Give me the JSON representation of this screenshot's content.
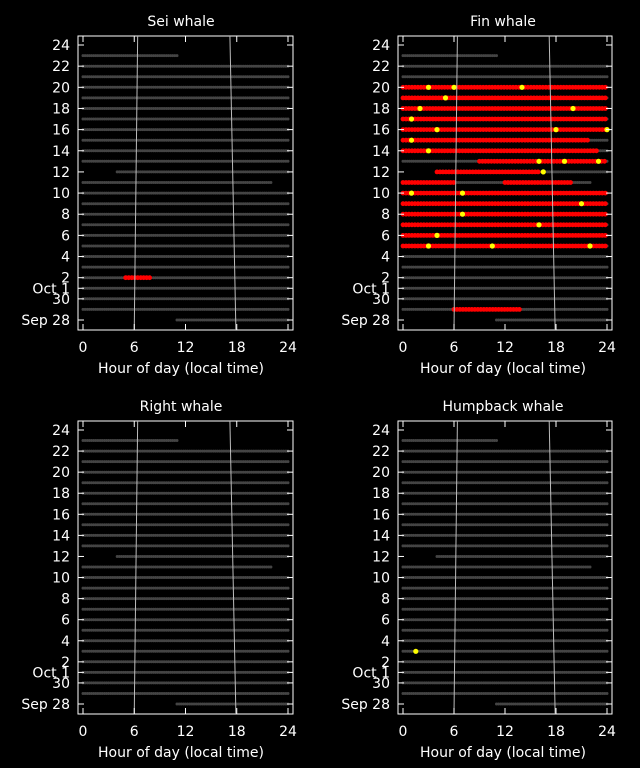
{
  "colors": {
    "background": "#000000",
    "axes": "#ffffff",
    "effort": "#444444",
    "detection": "#ff0000",
    "possible": "#ffff00",
    "sun_lines": "#bbbbbb"
  },
  "chart_data": [
    {
      "type": "scatter",
      "title": "Sei whale",
      "xlabel": "Hour of day (local time)",
      "x_ticks": [
        "0",
        "6",
        "12",
        "18",
        "24"
      ],
      "y_ticks": [
        "24",
        "22",
        "20",
        "18",
        "16",
        "14",
        "12",
        "10",
        "8",
        "6",
        "4",
        "2",
        "Oct 1",
        "30",
        "Sep 28"
      ],
      "xlim": [
        0,
        24
      ],
      "ylim": [
        "Sep 28",
        "Oct 24"
      ],
      "detections": [
        {
          "day": 2,
          "start": 5.0,
          "end": 8.0,
          "class": "detected"
        }
      ]
    },
    {
      "type": "scatter",
      "title": "Fin whale",
      "xlabel": "Hour of day (local time)",
      "x_ticks": [
        "0",
        "6",
        "12",
        "18",
        "24"
      ],
      "y_ticks": [
        "24",
        "22",
        "20",
        "18",
        "16",
        "14",
        "12",
        "10",
        "8",
        "6",
        "4",
        "2",
        "Oct 1",
        "30",
        "Sep 28"
      ],
      "xlim": [
        0,
        24
      ],
      "ylim": [
        "Sep 28",
        "Oct 24"
      ],
      "detections": [
        {
          "day": 20,
          "start": 0,
          "end": 24,
          "class": "detected"
        },
        {
          "day": 19,
          "start": 0,
          "end": 24,
          "class": "detected"
        },
        {
          "day": 18,
          "start": 0,
          "end": 24,
          "class": "detected"
        },
        {
          "day": 17,
          "start": 0,
          "end": 24,
          "class": "detected"
        },
        {
          "day": 16,
          "start": 0,
          "end": 24,
          "class": "detected"
        },
        {
          "day": 15,
          "start": 0,
          "end": 22,
          "class": "detected"
        },
        {
          "day": 14,
          "start": 0,
          "end": 23,
          "class": "detected"
        },
        {
          "day": 13,
          "start": 9,
          "end": 24,
          "class": "detected"
        },
        {
          "day": 12,
          "start": 4,
          "end": 16,
          "class": "detected"
        },
        {
          "day": 11,
          "start": 0,
          "end": 6,
          "class": "detected"
        },
        {
          "day": 11,
          "start": 12,
          "end": 20,
          "class": "detected"
        },
        {
          "day": 10,
          "start": 0,
          "end": 24,
          "class": "detected"
        },
        {
          "day": 9,
          "start": 0,
          "end": 24,
          "class": "detected"
        },
        {
          "day": 8,
          "start": 0,
          "end": 24,
          "class": "detected"
        },
        {
          "day": 7,
          "start": 0,
          "end": 24,
          "class": "detected"
        },
        {
          "day": 6,
          "start": 0,
          "end": 24,
          "class": "detected"
        },
        {
          "day": 5,
          "start": 0,
          "end": 24,
          "class": "detected"
        },
        {
          "day": -1,
          "start": 6,
          "end": 14,
          "class": "detected"
        }
      ],
      "possible": [
        {
          "day": 20,
          "hour": 3.0
        },
        {
          "day": 20,
          "hour": 6.0
        },
        {
          "day": 20,
          "hour": 14.0
        },
        {
          "day": 19,
          "hour": 5.0
        },
        {
          "day": 18,
          "hour": 2.0
        },
        {
          "day": 18,
          "hour": 20.0
        },
        {
          "day": 17,
          "hour": 1.0
        },
        {
          "day": 16,
          "hour": 4.0
        },
        {
          "day": 16,
          "hour": 18.0
        },
        {
          "day": 16,
          "hour": 24.0
        },
        {
          "day": 15,
          "hour": 1.0
        },
        {
          "day": 14,
          "hour": 3.0
        },
        {
          "day": 13,
          "hour": 16.0
        },
        {
          "day": 13,
          "hour": 19.0
        },
        {
          "day": 13,
          "hour": 23.0
        },
        {
          "day": 12,
          "hour": 16.5
        },
        {
          "day": 10,
          "hour": 1.0
        },
        {
          "day": 10,
          "hour": 7.0
        },
        {
          "day": 9,
          "hour": 21.0
        },
        {
          "day": 8,
          "hour": 7.0
        },
        {
          "day": 7,
          "hour": 16.0
        },
        {
          "day": 6,
          "hour": 4.0
        },
        {
          "day": 5,
          "hour": 3.0
        },
        {
          "day": 5,
          "hour": 10.5
        },
        {
          "day": 5,
          "hour": 22.0
        }
      ]
    },
    {
      "type": "scatter",
      "title": "Right whale",
      "xlabel": "Hour of day (local time)",
      "x_ticks": [
        "0",
        "6",
        "12",
        "18",
        "24"
      ],
      "y_ticks": [
        "24",
        "22",
        "20",
        "18",
        "16",
        "14",
        "12",
        "10",
        "8",
        "6",
        "4",
        "2",
        "Oct 1",
        "30",
        "Sep 28"
      ],
      "xlim": [
        0,
        24
      ],
      "ylim": [
        "Sep 28",
        "Oct 24"
      ],
      "detections": []
    },
    {
      "type": "scatter",
      "title": "Humpback whale",
      "xlabel": "Hour of day (local time)",
      "x_ticks": [
        "0",
        "6",
        "12",
        "18",
        "24"
      ],
      "y_ticks": [
        "24",
        "22",
        "20",
        "18",
        "16",
        "14",
        "12",
        "10",
        "8",
        "6",
        "4",
        "2",
        "Oct 1",
        "30",
        "Sep 28"
      ],
      "xlim": [
        0,
        24
      ],
      "ylim": [
        "Sep 28",
        "Oct 24"
      ],
      "detections": [],
      "possible": [
        {
          "day": 3,
          "hour": 1.5
        }
      ]
    }
  ],
  "effort": {
    "rows": [
      {
        "day": 23,
        "start": 0,
        "end": 11
      },
      {
        "day": 22,
        "start": 0,
        "end": 24
      },
      {
        "day": 21,
        "start": 0,
        "end": 24
      },
      {
        "day": 20,
        "start": 0,
        "end": 24
      },
      {
        "day": 19,
        "start": 0,
        "end": 24
      },
      {
        "day": 18,
        "start": 0,
        "end": 24
      },
      {
        "day": 17,
        "start": 0,
        "end": 24
      },
      {
        "day": 16,
        "start": 0,
        "end": 24
      },
      {
        "day": 15,
        "start": 0,
        "end": 24
      },
      {
        "day": 14,
        "start": 0,
        "end": 24
      },
      {
        "day": 13,
        "start": 0,
        "end": 24
      },
      {
        "day": 12,
        "start": 4,
        "end": 24
      },
      {
        "day": 11,
        "start": 0,
        "end": 22
      },
      {
        "day": 10,
        "start": 0,
        "end": 24
      },
      {
        "day": 9,
        "start": 0,
        "end": 24
      },
      {
        "day": 8,
        "start": 0,
        "end": 24
      },
      {
        "day": 7,
        "start": 0,
        "end": 24
      },
      {
        "day": 6,
        "start": 0,
        "end": 24
      },
      {
        "day": 5,
        "start": 0,
        "end": 24
      },
      {
        "day": 4,
        "start": 0,
        "end": 24
      },
      {
        "day": 3,
        "start": 0,
        "end": 24
      },
      {
        "day": 2,
        "start": 0,
        "end": 24
      },
      {
        "day": 1,
        "start": 0,
        "end": 24
      },
      {
        "day": 0,
        "start": 0,
        "end": 24
      },
      {
        "day": -1,
        "start": 0,
        "end": 24
      },
      {
        "day": -2,
        "start": 11,
        "end": 24
      }
    ],
    "sunrise": [
      {
        "day": -2,
        "hour": 6.0
      },
      {
        "day": 24,
        "hour": 6.4
      }
    ],
    "sunset": [
      {
        "day": -2,
        "hour": 17.9
      },
      {
        "day": 24,
        "hour": 17.2
      }
    ]
  }
}
